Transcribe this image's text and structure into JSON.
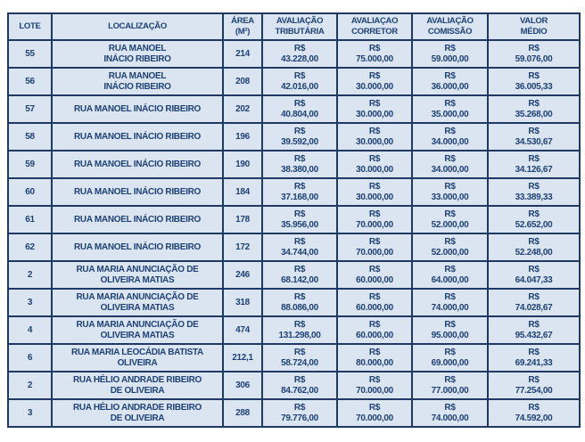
{
  "colors": {
    "cell_bg": "#dbe5f1",
    "border": "#1f3864",
    "text": "#1e4175",
    "page_bg": "#ffffff"
  },
  "table": {
    "columns": [
      "LOTE",
      "LOCALIZAÇÃO",
      "ÁREA\n(M²)",
      "AVALIAÇÃO\nTRIBUTÁRIA",
      "AVALIAÇAO\nCORRETOR",
      "AVALIAÇÃO\nCOMISSÃO",
      "VALOR\nMÉDIO"
    ],
    "rows": [
      {
        "lote": "55",
        "localizacao": "RUA MANOEL\nINÁCIO RIBEIRO",
        "area": "214",
        "avaliacao_tributaria": "R$\n43.228,00",
        "avaliacao_corretor": "R$\n75.000,00",
        "avaliacao_comissao": "R$\n59.000,00",
        "valor_medio": "R$\n59.076,00"
      },
      {
        "lote": "56",
        "localizacao": "RUA MANOEL\nINÁCIO RIBEIRO",
        "area": "208",
        "avaliacao_tributaria": "R$\n42.016,00",
        "avaliacao_corretor": "R$\n30.000,00",
        "avaliacao_comissao": "R$\n36.000,00",
        "valor_medio": "R$\n36.005,33"
      },
      {
        "lote": "57",
        "localizacao": "RUA MANOEL INÁCIO RIBEIRO",
        "area": "202",
        "avaliacao_tributaria": "R$\n40.804,00",
        "avaliacao_corretor": "R$\n30.000,00",
        "avaliacao_comissao": "R$\n35.000,00",
        "valor_medio": "R$\n35.268,00"
      },
      {
        "lote": "58",
        "localizacao": "RUA MANOEL INÁCIO RIBEIRO",
        "area": "196",
        "avaliacao_tributaria": "R$\n39.592,00",
        "avaliacao_corretor": "R$\n30.000,00",
        "avaliacao_comissao": "R$\n34.000,00",
        "valor_medio": "R$\n34.530,67"
      },
      {
        "lote": "59",
        "localizacao": "RUA MANOEL INÁCIO RIBEIRO",
        "area": "190",
        "avaliacao_tributaria": "R$\n38.380,00",
        "avaliacao_corretor": "R$\n30.000,00",
        "avaliacao_comissao": "R$\n34.000,00",
        "valor_medio": "R$\n34.126,67"
      },
      {
        "lote": "60",
        "localizacao": "RUA MANOEL INÁCIO RIBEIRO",
        "area": "184",
        "avaliacao_tributaria": "R$\n37.168,00",
        "avaliacao_corretor": "R$\n30.000,00",
        "avaliacao_comissao": "R$\n33.000,00",
        "valor_medio": "R$\n33.389,33"
      },
      {
        "lote": "61",
        "localizacao": "RUA MANOEL INÁCIO RIBEIRO",
        "area": "178",
        "avaliacao_tributaria": "R$\n35.956,00",
        "avaliacao_corretor": "R$\n70.000,00",
        "avaliacao_comissao": "R$\n52.000,00",
        "valor_medio": "R$\n52.652,00"
      },
      {
        "lote": "62",
        "localizacao": "RUA MANOEL INÁCIO RIBEIRO",
        "area": "172",
        "avaliacao_tributaria": "R$\n34.744,00",
        "avaliacao_corretor": "R$\n70.000,00",
        "avaliacao_comissao": "R$\n52.000,00",
        "valor_medio": "R$\n52.248,00"
      },
      {
        "lote": "2",
        "localizacao": "RUA MARIA ANUNCIAÇÃO DE\nOLIVEIRA MATIAS",
        "area": "246",
        "avaliacao_tributaria": "R$\n68.142,00",
        "avaliacao_corretor": "R$\n60.000,00",
        "avaliacao_comissao": "R$\n64.000,00",
        "valor_medio": "R$\n64.047,33"
      },
      {
        "lote": "3",
        "localizacao": "RUA MARIA ANUNCIAÇÃO DE\nOLIVEIRA MATIAS",
        "area": "318",
        "avaliacao_tributaria": "R$\n88.086,00",
        "avaliacao_corretor": "R$\n60.000,00",
        "avaliacao_comissao": "R$\n74.000,00",
        "valor_medio": "R$\n74.028,67"
      },
      {
        "lote": "4",
        "localizacao": "RUA MARIA ANUNCIAÇÃO DE\nOLIVEIRA MATIAS",
        "area": "474",
        "avaliacao_tributaria": "R$\n131.298,00",
        "avaliacao_corretor": "R$\n60.000,00",
        "avaliacao_comissao": "R$\n95.000,00",
        "valor_medio": "R$\n95.432,67"
      },
      {
        "lote": "6",
        "localizacao": "RUA MARIA LEOCÁDIA BATISTA\nOLIVEIRA",
        "area": "212,1",
        "avaliacao_tributaria": "R$\n58.724,00",
        "avaliacao_corretor": "R$\n80.000,00",
        "avaliacao_comissao": "R$\n69.000,00",
        "valor_medio": "R$\n69.241,33"
      },
      {
        "lote": "2",
        "localizacao": "RUA HÉLIO ANDRADE RIBEIRO\nDE OLIVEIRA",
        "area": "306",
        "avaliacao_tributaria": "R$\n84.762,00",
        "avaliacao_corretor": "R$\n70.000,00",
        "avaliacao_comissao": "R$\n77.000,00",
        "valor_medio": "R$\n77.254,00"
      },
      {
        "lote": "3",
        "localizacao": "RUA HÉLIO ANDRADE RIBEIRO\nDE OLIVEIRA",
        "area": "288",
        "avaliacao_tributaria": "R$\n79.776,00",
        "avaliacao_corretor": "R$\n70.000,00",
        "avaliacao_comissao": "R$\n74.000,00",
        "valor_medio": "R$\n74.592,00"
      }
    ]
  }
}
